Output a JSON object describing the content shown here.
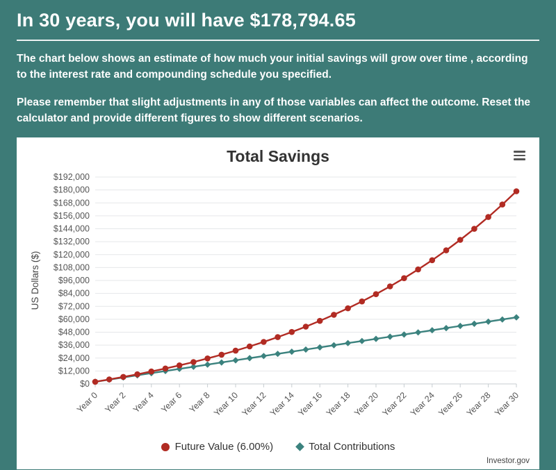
{
  "page": {
    "background_color": "#3d7b77",
    "heading": "In 30 years, you will have $178,794.65",
    "paragraph1": "The chart below shows an estimate of how much your initial savings will grow over time , according to the interest rate and compounding schedule you specified.",
    "paragraph2": "Please remember that slight adjustments in any of those variables can affect the outcome. Reset the calculator and provide different figures to show different scenarios.",
    "credit": "Investor.gov"
  },
  "chart_data": {
    "type": "line",
    "title": "Total Savings",
    "ylabel": "US Dollars ($)",
    "xlabel": "",
    "ylim": [
      0,
      192000
    ],
    "ytick_step": 12000,
    "grid": "horizontal",
    "legend_position": "bottom",
    "x_years": [
      0,
      1,
      2,
      3,
      4,
      5,
      6,
      7,
      8,
      9,
      10,
      11,
      12,
      13,
      14,
      15,
      16,
      17,
      18,
      19,
      20,
      21,
      22,
      23,
      24,
      25,
      26,
      27,
      28,
      29,
      30
    ],
    "xtick_labels": [
      "Year 0",
      "Year 2",
      "Year 4",
      "Year 6",
      "Year 8",
      "Year 10",
      "Year 12",
      "Year 14",
      "Year 16",
      "Year 18",
      "Year 20",
      "Year 22",
      "Year 24",
      "Year 26",
      "Year 28",
      "Year 30"
    ],
    "series": [
      {
        "name": "Future Value (6.00%)",
        "color": "#b12b23",
        "marker": "circle",
        "values": [
          2000,
          4171,
          6476,
          8923,
          11521,
          14280,
          17208,
          20317,
          23618,
          27122,
          30843,
          34793,
          38986,
          43439,
          48166,
          53184,
          58512,
          64169,
          70174,
          76550,
          83319,
          90506,
          98136,
          106236,
          114836,
          123967,
          133661,
          143952,
          154879,
          166479,
          178794.65
        ]
      },
      {
        "name": "Total Contributions",
        "color": "#3b827e",
        "marker": "diamond",
        "values": [
          2000,
          3992,
          5984,
          7976,
          9968,
          11960,
          13952,
          15944,
          17936,
          19928,
          21920,
          23912,
          25904,
          27896,
          29888,
          31880,
          33872,
          35864,
          37856,
          39848,
          41840,
          43832,
          45824,
          47816,
          49808,
          51800,
          53792,
          55784,
          57776,
          59768,
          61760
        ]
      }
    ]
  }
}
